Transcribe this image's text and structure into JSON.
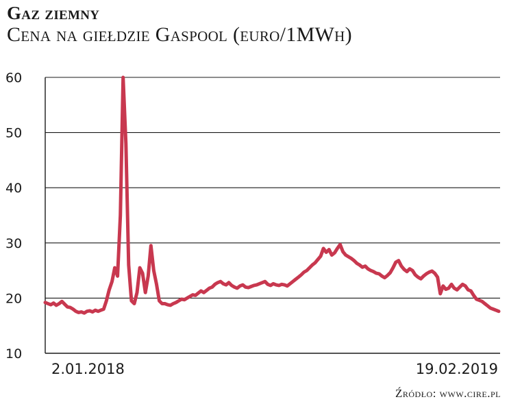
{
  "header": {
    "title": "Gaz ziemny",
    "subtitle": "Cena na giełdzie Gaspool (euro/1MWh)"
  },
  "footer": {
    "source": "Źródło: www.cire.pl"
  },
  "colors": {
    "line": "#c8384f",
    "grid": "#1a1a1a",
    "background": "#ffffff"
  },
  "chart_data": {
    "type": "line",
    "title": "Gaz ziemny",
    "subtitle": "Cena na giełdzie Gaspool (euro/1MWh)",
    "xlabel": "",
    "ylabel": "",
    "ylim": [
      10,
      60
    ],
    "yticks": [
      10,
      20,
      30,
      40,
      50,
      60
    ],
    "x_endpoint_labels": [
      "2.01.2018",
      "19.02.2019"
    ],
    "grid": "horizontal",
    "series": [
      {
        "values": [
          19.2,
          19.0,
          18.8,
          19.1,
          18.7,
          19.0,
          19.4,
          18.9,
          18.4,
          18.3,
          18.0,
          17.6,
          17.4,
          17.5,
          17.3,
          17.6,
          17.7,
          17.5,
          17.8,
          17.6,
          17.8,
          18.0,
          19.5,
          21.5,
          23.0,
          25.5,
          24.0,
          35.0,
          60.0,
          48.0,
          26.0,
          19.5,
          19.0,
          21.0,
          25.5,
          24.5,
          21.0,
          24.0,
          29.5,
          25.0,
          22.5,
          19.5,
          19.0,
          19.0,
          18.8,
          18.7,
          19.0,
          19.2,
          19.5,
          19.8,
          19.7,
          20.0,
          20.3,
          20.6,
          20.5,
          20.9,
          21.3,
          21.0,
          21.4,
          21.8,
          22.0,
          22.5,
          22.8,
          23.0,
          22.6,
          22.4,
          22.8,
          22.3,
          22.0,
          21.8,
          22.2,
          22.4,
          22.0,
          21.9,
          22.1,
          22.3,
          22.4,
          22.6,
          22.8,
          23.0,
          22.5,
          22.3,
          22.6,
          22.4,
          22.3,
          22.5,
          22.4,
          22.2,
          22.6,
          23.0,
          23.4,
          23.8,
          24.2,
          24.7,
          25.0,
          25.5,
          26.0,
          26.4,
          27.0,
          27.6,
          29.0,
          28.3,
          28.8,
          27.8,
          28.2,
          29.0,
          29.7,
          28.4,
          27.8,
          27.5,
          27.2,
          26.8,
          26.3,
          26.0,
          25.6,
          25.8,
          25.3,
          25.0,
          24.8,
          24.5,
          24.4,
          24.0,
          23.7,
          24.1,
          24.6,
          25.5,
          26.5,
          26.8,
          25.8,
          25.2,
          24.8,
          25.3,
          25.0,
          24.2,
          23.8,
          23.5,
          24.0,
          24.4,
          24.7,
          24.9,
          24.5,
          23.8,
          20.8,
          22.2,
          21.6,
          21.8,
          22.5,
          21.8,
          21.5,
          22.0,
          22.5,
          22.2,
          21.5,
          21.3,
          20.5,
          19.8,
          19.6,
          19.4,
          19.0,
          18.6,
          18.2,
          18.0,
          17.8,
          17.6
        ]
      }
    ]
  }
}
